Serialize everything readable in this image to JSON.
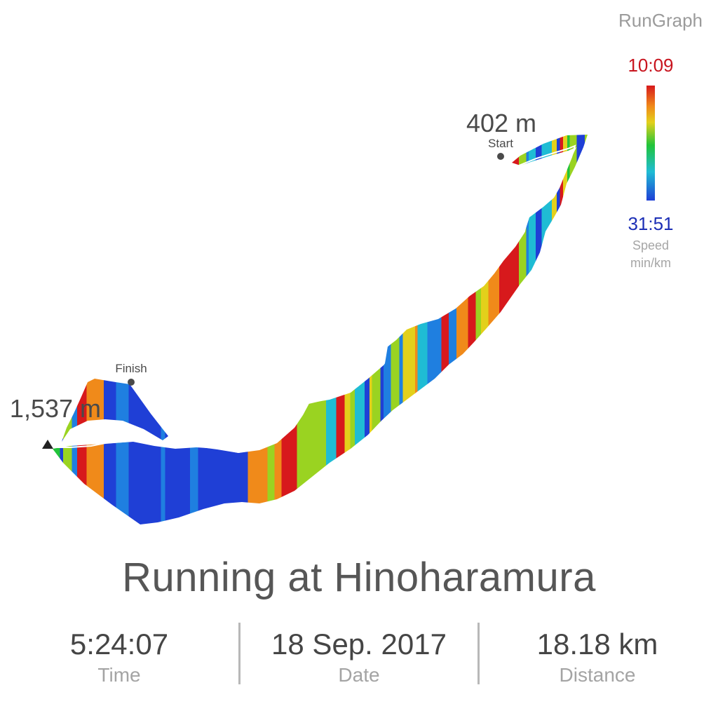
{
  "app": {
    "brand": "RunGraph"
  },
  "legend": {
    "max_pace": "10:09",
    "min_pace": "31:51",
    "title": "Speed",
    "unit": "min/km",
    "colors": {
      "fast": "#d7191c",
      "slow": "#1f3fd6",
      "mid": "#21c43a"
    }
  },
  "route": {
    "start_label": "Start",
    "start_elevation": "402 m",
    "finish_label": "Finish",
    "max_elevation": "1,537 m",
    "palette": [
      "#d7191c",
      "#f08a1a",
      "#e3d01b",
      "#9ad321",
      "#21c43a",
      "#1fbcd4",
      "#1f7fe0",
      "#1f3fd6"
    ]
  },
  "activity": {
    "title": "Running at Hinoharamura"
  },
  "stats": {
    "time": {
      "value": "5:24:07",
      "label": "Time"
    },
    "date": {
      "value": "18 Sep. 2017",
      "label": "Date"
    },
    "distance": {
      "value": "18.18 km",
      "label": "Distance"
    }
  }
}
